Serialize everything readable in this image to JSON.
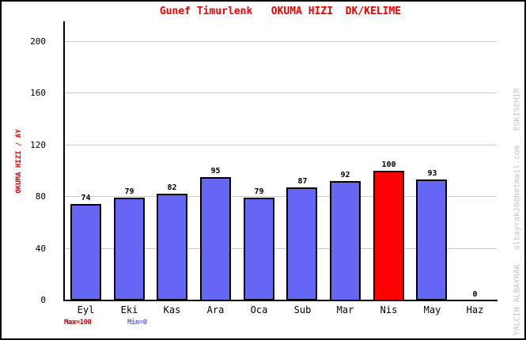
{
  "title": "Gunef Timurlenk   OKUMA HIZI  DK/KELIME",
  "watermark": "YALCIN ALBAYRAK _ albayrak26@hotmail.com _ ESKISEHIR",
  "footer": {
    "max_label": "Max=100",
    "min_label": "Min=0"
  },
  "chart_data": {
    "type": "bar",
    "title": "Gunef Timurlenk   OKUMA HIZI  DK/KELIME",
    "ylabel": "OKUMA HIZI / AY",
    "xlabel": "",
    "categories": [
      "Eyl",
      "Eki",
      "Kas",
      "Ara",
      "Oca",
      "Sub",
      "Mar",
      "Nis",
      "May",
      "Haz"
    ],
    "values": [
      74,
      79,
      82,
      95,
      79,
      87,
      92,
      100,
      93,
      0
    ],
    "bar_fills": [
      "#6666f4",
      "#6666f4",
      "#6666f4",
      "#6666f4",
      "#6666f4",
      "#6666f4",
      "#6666f4",
      "#ff0000",
      "#6666f4",
      "#6666f4"
    ],
    "highlight_index": 7,
    "yticks": [
      0,
      40,
      80,
      120,
      160,
      200
    ],
    "ylim": [
      0,
      220
    ],
    "grid": true,
    "legend": false,
    "value_labels_shown": true,
    "colors": {
      "title": "#f20000",
      "ylabel": "#dd0000",
      "bar_blue": "#6666f4",
      "bar_red": "#ff0000",
      "bar_border": "#000000",
      "max_label": "#cc0000",
      "min_label": "#6666ee",
      "grid": "#c9c9c9",
      "axis": "#000000",
      "tick_text": "#000000",
      "watermark": "#c3c3c3"
    }
  }
}
